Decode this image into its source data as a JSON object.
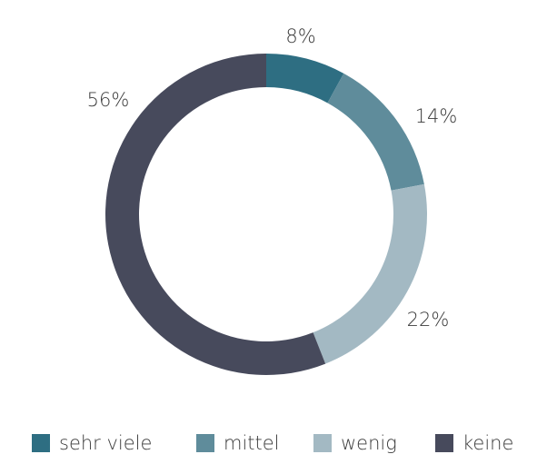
{
  "chart_data": {
    "type": "donut",
    "categories": [
      "sehr viele",
      "mittel",
      "wenig",
      "keine"
    ],
    "values": [
      8,
      14,
      22,
      56
    ],
    "value_labels": [
      "8%",
      "14%",
      "22%",
      "56%"
    ],
    "colors": [
      "#2e6e82",
      "#5f8c9b",
      "#a3b9c3",
      "#474a5c"
    ]
  }
}
